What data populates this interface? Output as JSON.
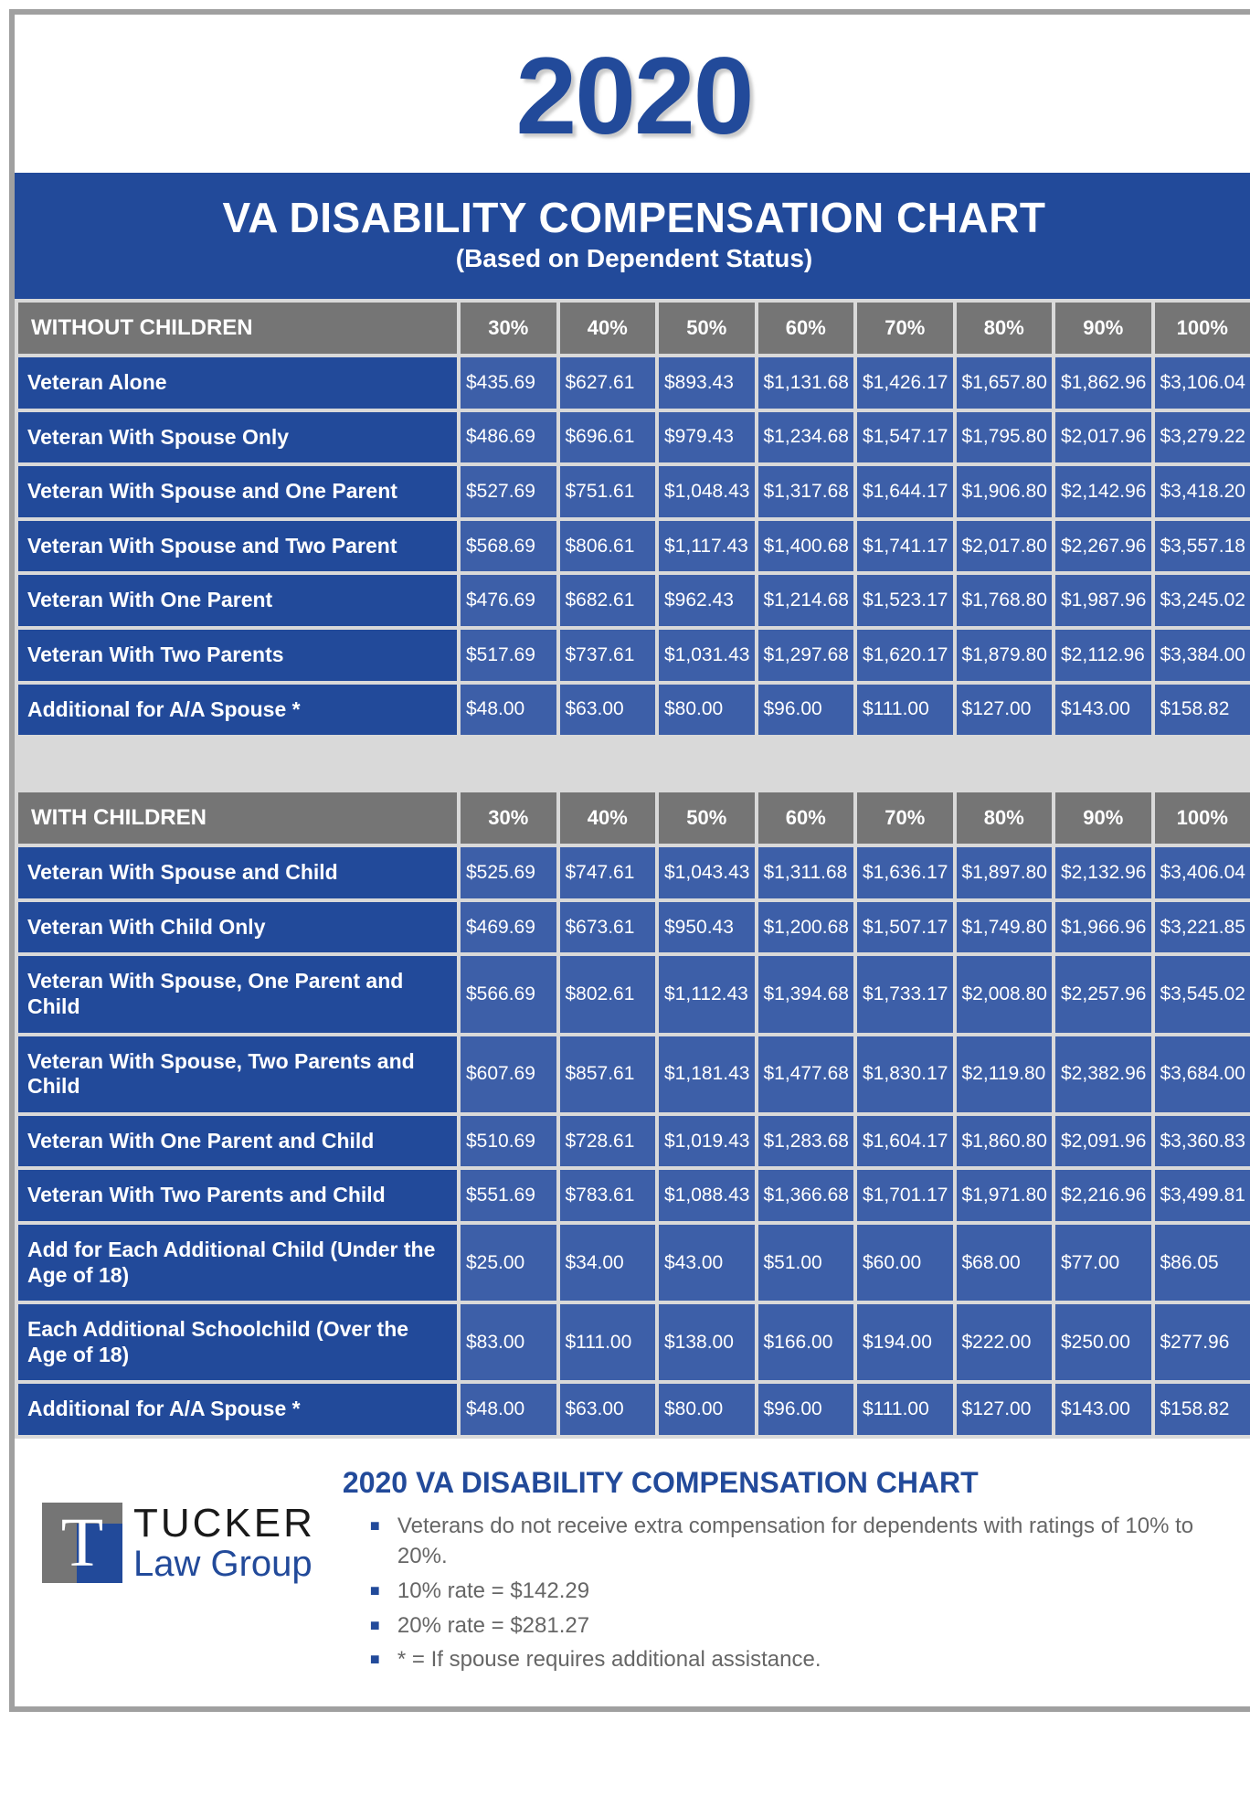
{
  "year": "2020",
  "title": "VA DISABILITY COMPENSATION CHART",
  "subtitle": "(Based on Dependent Status)",
  "percent_headers": [
    "30%",
    "40%",
    "50%",
    "60%",
    "70%",
    "80%",
    "90%",
    "100%"
  ],
  "colors": {
    "primary_blue": "#224a9a",
    "cell_blue": "#3d5fa8",
    "header_gray": "#757575",
    "gap_gray": "#d9d9d9",
    "border_gray": "#a0a0a0",
    "note_text": "#666666"
  },
  "section1": {
    "heading": "WITHOUT CHILDREN",
    "rows": [
      {
        "label": "Veteran Alone",
        "values": [
          "$435.69",
          "$627.61",
          "$893.43",
          "$1,131.68",
          "$1,426.17",
          "$1,657.80",
          "$1,862.96",
          "$3,106.04"
        ]
      },
      {
        "label": "Veteran With Spouse Only",
        "values": [
          "$486.69",
          "$696.61",
          "$979.43",
          "$1,234.68",
          "$1,547.17",
          "$1,795.80",
          "$2,017.96",
          "$3,279.22"
        ]
      },
      {
        "label": "Veteran With Spouse and One Parent",
        "values": [
          "$527.69",
          "$751.61",
          "$1,048.43",
          "$1,317.68",
          "$1,644.17",
          "$1,906.80",
          "$2,142.96",
          "$3,418.20"
        ]
      },
      {
        "label": "Veteran With Spouse and Two Parent",
        "values": [
          "$568.69",
          "$806.61",
          "$1,117.43",
          "$1,400.68",
          "$1,741.17",
          "$2,017.80",
          "$2,267.96",
          "$3,557.18"
        ]
      },
      {
        "label": "Veteran With One Parent",
        "values": [
          "$476.69",
          "$682.61",
          "$962.43",
          "$1,214.68",
          "$1,523.17",
          "$1,768.80",
          "$1,987.96",
          "$3,245.02"
        ]
      },
      {
        "label": "Veteran With Two Parents",
        "values": [
          "$517.69",
          "$737.61",
          "$1,031.43",
          "$1,297.68",
          "$1,620.17",
          "$1,879.80",
          "$2,112.96",
          "$3,384.00"
        ]
      },
      {
        "label": "Additional for A/A Spouse *",
        "values": [
          "$48.00",
          "$63.00",
          "$80.00",
          "$96.00",
          "$111.00",
          "$127.00",
          "$143.00",
          "$158.82"
        ]
      }
    ]
  },
  "section2": {
    "heading": "WITH CHILDREN",
    "rows": [
      {
        "label": "Veteran With Spouse and Child",
        "values": [
          "$525.69",
          "$747.61",
          "$1,043.43",
          "$1,311.68",
          "$1,636.17",
          "$1,897.80",
          "$2,132.96",
          "$3,406.04"
        ]
      },
      {
        "label": "Veteran With Child Only",
        "values": [
          "$469.69",
          "$673.61",
          "$950.43",
          "$1,200.68",
          "$1,507.17",
          "$1,749.80",
          "$1,966.96",
          "$3,221.85"
        ]
      },
      {
        "label": "Veteran With Spouse, One Parent and Child",
        "values": [
          "$566.69",
          "$802.61",
          "$1,112.43",
          "$1,394.68",
          "$1,733.17",
          "$2,008.80",
          "$2,257.96",
          "$3,545.02"
        ]
      },
      {
        "label": "Veteran With Spouse, Two Parents and Child",
        "values": [
          "$607.69",
          "$857.61",
          "$1,181.43",
          "$1,477.68",
          "$1,830.17",
          "$2,119.80",
          "$2,382.96",
          "$3,684.00"
        ]
      },
      {
        "label": "Veteran With One Parent and Child",
        "values": [
          "$510.69",
          "$728.61",
          "$1,019.43",
          "$1,283.68",
          "$1,604.17",
          "$1,860.80",
          "$2,091.96",
          "$3,360.83"
        ]
      },
      {
        "label": "Veteran With Two Parents and Child",
        "values": [
          "$551.69",
          "$783.61",
          "$1,088.43",
          "$1,366.68",
          "$1,701.17",
          "$1,971.80",
          "$2,216.96",
          "$3,499.81"
        ]
      },
      {
        "label": "Add for Each Additional Child (Under the Age of 18)",
        "values": [
          "$25.00",
          "$34.00",
          "$43.00",
          "$51.00",
          "$60.00",
          "$68.00",
          "$77.00",
          "$86.05"
        ]
      },
      {
        "label": "Each Additional Schoolchild (Over the Age of 18)",
        "values": [
          "$83.00",
          "$111.00",
          "$138.00",
          "$166.00",
          "$194.00",
          "$222.00",
          "$250.00",
          "$277.96"
        ]
      },
      {
        "label": "Additional for A/A Spouse *",
        "values": [
          "$48.00",
          "$63.00",
          "$80.00",
          "$96.00",
          "$111.00",
          "$127.00",
          "$143.00",
          "$158.82"
        ]
      }
    ]
  },
  "logo": {
    "letter": "T",
    "line1": "TUCKER",
    "line2": "Law Group"
  },
  "footer": {
    "title": "2020 VA DISABILITY COMPENSATION CHART",
    "notes": [
      "Veterans do not receive extra compensation for dependents with ratings of 10% to 20%.",
      "10% rate = $142.29",
      "20% rate = $281.27",
      "* = If spouse requires additional assistance."
    ]
  }
}
